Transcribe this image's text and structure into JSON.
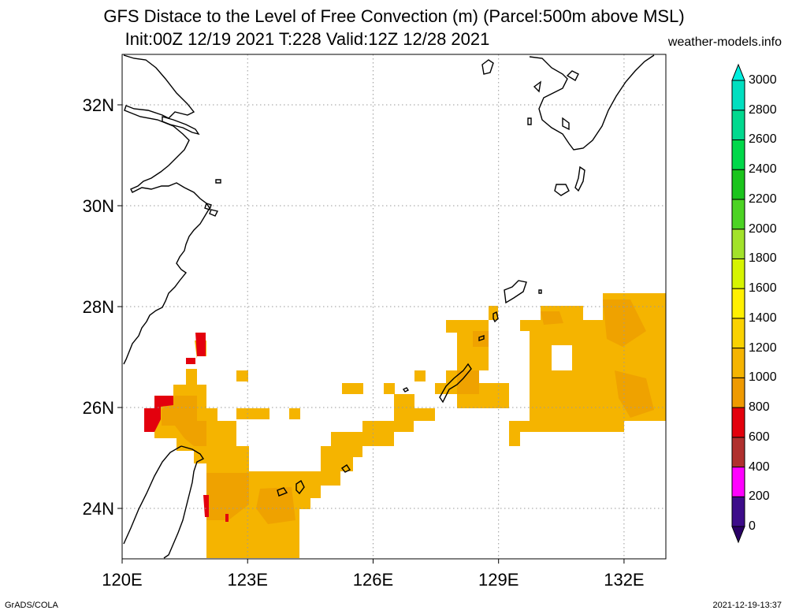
{
  "title_line1": "GFS Distace to the Level of Free Convection (m) (Parcel:500m above MSL)",
  "title_line2": "Init:00Z 12/19 2021 T:228 Valid:12Z 12/28 2021",
  "site": "weather-models.info",
  "footer_left": "GrADS/COLA",
  "footer_right": "2021-12-19-13:37",
  "map": {
    "lon_range": [
      120,
      133
    ],
    "lat_range": [
      23,
      33
    ],
    "lon_ticks": [
      {
        "value": 120,
        "label": "120E"
      },
      {
        "value": 123,
        "label": "123E"
      },
      {
        "value": 126,
        "label": "126E"
      },
      {
        "value": 129,
        "label": "129E"
      },
      {
        "value": 132,
        "label": "132E"
      }
    ],
    "lat_ticks": [
      {
        "value": 24,
        "label": "24N"
      },
      {
        "value": 26,
        "label": "26N"
      },
      {
        "value": 28,
        "label": "28N"
      },
      {
        "value": 30,
        "label": "30N"
      },
      {
        "value": 32,
        "label": "32N"
      }
    ],
    "grid": "dotted",
    "colors": {
      "orange_dark": "#f2a600",
      "orange": "#f8bc1a",
      "red": "#e5000b",
      "coast": "#000000"
    }
  },
  "colorbar": {
    "levels": [
      "0",
      "200",
      "400",
      "600",
      "800",
      "1000",
      "1200",
      "1400",
      "1600",
      "1800",
      "2000",
      "2200",
      "2400",
      "2600",
      "2800",
      "3000"
    ],
    "colors": [
      "#3d0c8a",
      "#ff00ff",
      "#b0302e",
      "#e3000d",
      "#ef9a00",
      "#f5b400",
      "#fad200",
      "#fff000",
      "#d6f400",
      "#a2e22a",
      "#4cd324",
      "#1bc41d",
      "#00d84a",
      "#01d98f",
      "#00dfc0",
      "#00eede"
    ],
    "bottom_color": "#2a0066"
  }
}
